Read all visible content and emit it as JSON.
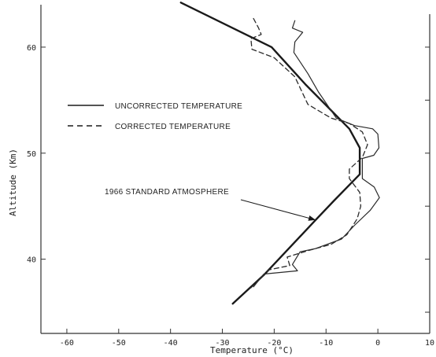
{
  "chart_data": {
    "type": "line",
    "xlabel": "Temperature (°C)",
    "ylabel": "Altitude (Km)",
    "xlim": [
      -65,
      10
    ],
    "ylim": [
      33,
      64
    ],
    "x_ticks": [
      -60,
      -50,
      -40,
      -30,
      -20,
      -10,
      0,
      10
    ],
    "y_ticks": [
      40,
      50,
      60
    ],
    "legend": {
      "placement": "center-left",
      "entries": [
        {
          "label": "UNCORRECTED TEMPERATURE",
          "style": "solid"
        },
        {
          "label": "CORRECTED TEMPERATURE",
          "style": "dashed"
        }
      ]
    },
    "annotation": {
      "text": "1966 STANDARD ATMOSPHERE",
      "points_to": [
        -12,
        43.7
      ]
    },
    "series": [
      {
        "name": "1966 STANDARD ATMOSPHERE",
        "style": "solid-thick",
        "color": "#1a1a1a",
        "points": [
          [
            -38,
            64.2
          ],
          [
            -20.5,
            60
          ],
          [
            -14,
            56.5
          ],
          [
            -5.5,
            52.3
          ],
          [
            -3.5,
            50.5
          ],
          [
            -3.5,
            48
          ],
          [
            -8.5,
            45.5
          ],
          [
            -12,
            43.7
          ],
          [
            -22,
            38.5
          ],
          [
            -28,
            35.8
          ]
        ]
      },
      {
        "name": "UNCORRECTED TEMPERATURE",
        "style": "solid-thin",
        "color": "#2a2a2a",
        "points": [
          [
            -16,
            62.5
          ],
          [
            -16.5,
            61.8
          ],
          [
            -14.5,
            61.4
          ],
          [
            -16,
            60.5
          ],
          [
            -16.2,
            59.5
          ],
          [
            -13.5,
            57.5
          ],
          [
            -11.5,
            55.8
          ],
          [
            -8,
            53.3
          ],
          [
            -4.5,
            52.6
          ],
          [
            -1,
            52.3
          ],
          [
            0,
            51.8
          ],
          [
            0.2,
            50.5
          ],
          [
            -0.8,
            49.8
          ],
          [
            -3,
            49.5
          ],
          [
            -3,
            47.6
          ],
          [
            -0.7,
            46.8
          ],
          [
            0.3,
            45.8
          ],
          [
            -1.5,
            44.6
          ],
          [
            -4.5,
            43.2
          ],
          [
            -7,
            41.9
          ],
          [
            -12,
            41
          ],
          [
            -15,
            40.7
          ],
          [
            -16.5,
            39.5
          ],
          [
            -15.5,
            38.9
          ],
          [
            -22,
            38.6
          ],
          [
            -24,
            37.4
          ]
        ]
      },
      {
        "name": "CORRECTED TEMPERATURE",
        "style": "dashed",
        "color": "#2a2a2a",
        "points": [
          [
            -24,
            62.7
          ],
          [
            -23,
            61.8
          ],
          [
            -22.5,
            61.2
          ],
          [
            -24.5,
            60.8
          ],
          [
            -24.3,
            59.8
          ],
          [
            -20,
            59
          ],
          [
            -16,
            57.2
          ],
          [
            -13.5,
            54.6
          ],
          [
            -9,
            53.3
          ],
          [
            -5.5,
            52.8
          ],
          [
            -3,
            52
          ],
          [
            -2,
            50.8
          ],
          [
            -3,
            49.6
          ],
          [
            -5.5,
            48.5
          ],
          [
            -5.5,
            47.6
          ],
          [
            -3.5,
            46.3
          ],
          [
            -3.3,
            45
          ],
          [
            -4,
            43.8
          ],
          [
            -6,
            42.3
          ],
          [
            -9,
            41.4
          ],
          [
            -13.5,
            40.8
          ],
          [
            -17.5,
            40.2
          ],
          [
            -17,
            39.4
          ],
          [
            -21,
            39
          ],
          [
            -23,
            38
          ],
          [
            -24.5,
            37.3
          ]
        ]
      }
    ]
  }
}
